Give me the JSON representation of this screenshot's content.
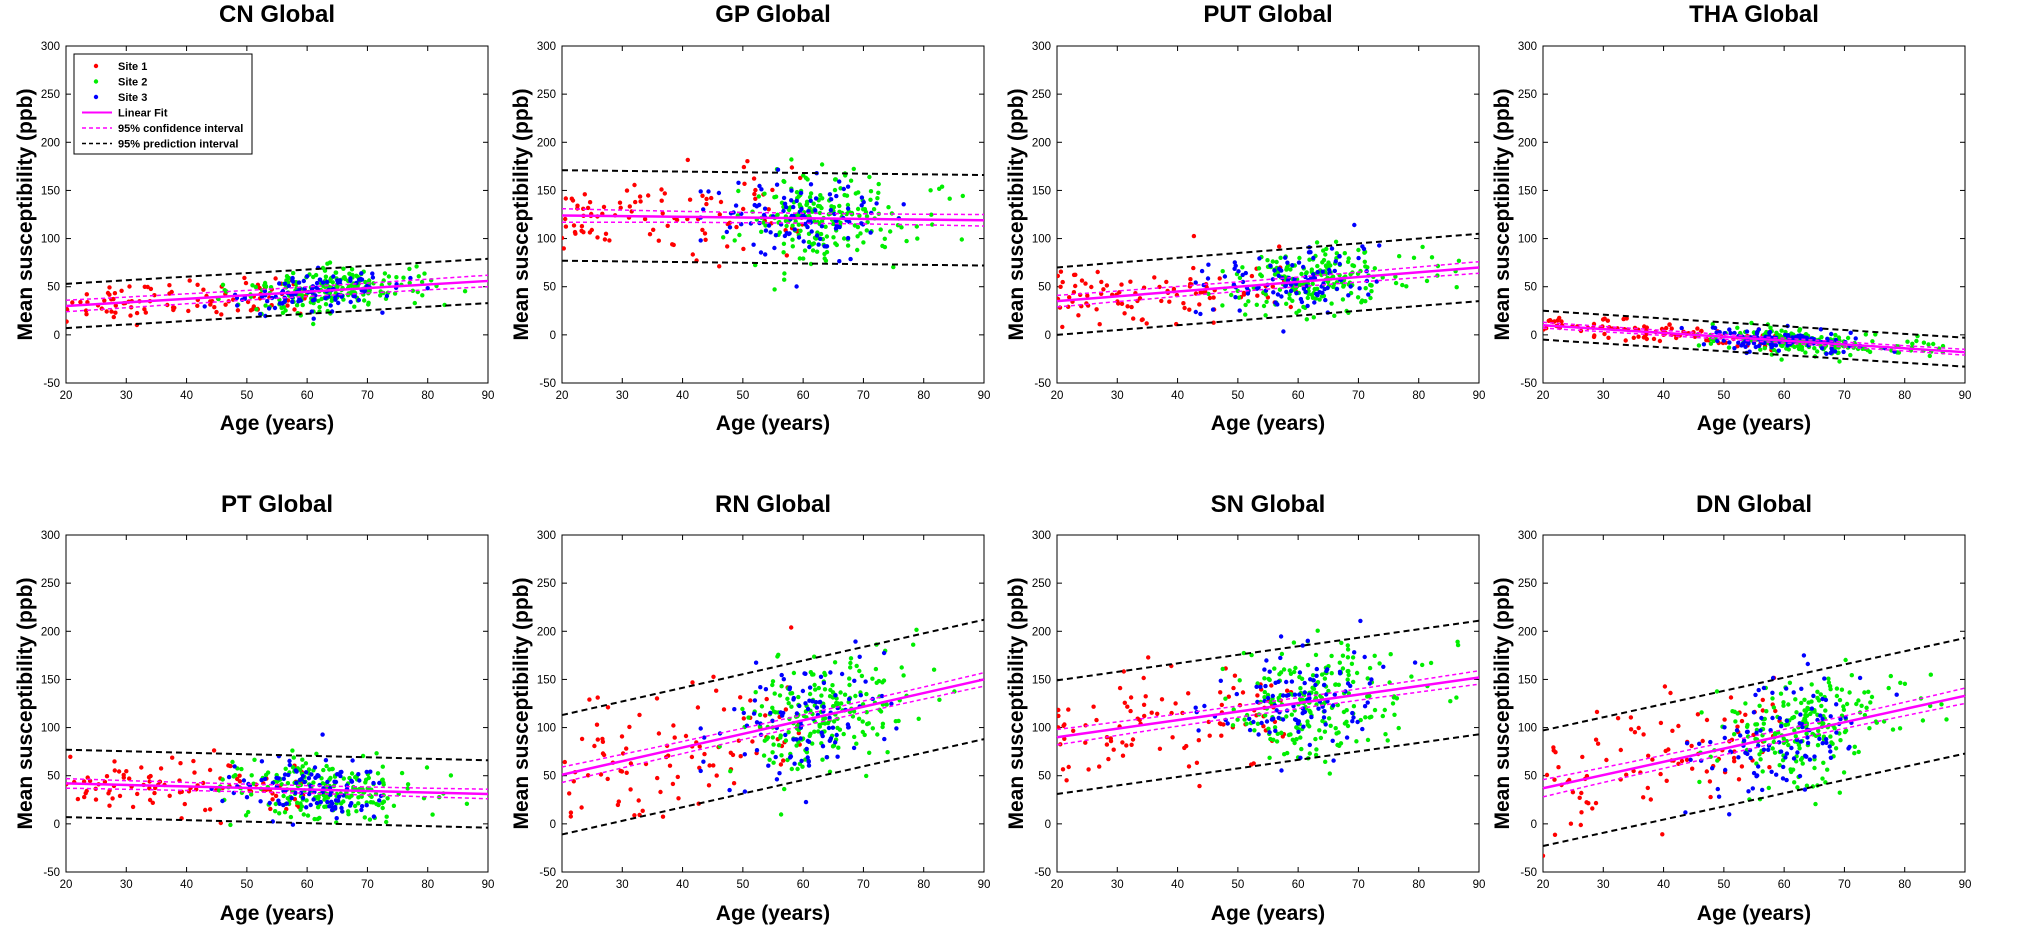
{
  "figure": {
    "xlabel": "Age (years)",
    "ylabel": "Mean susceptibility (ppb)",
    "legend": {
      "placement": "top-left of first panel",
      "entries": [
        {
          "label": "Site 1",
          "kind": "marker",
          "color": "#ff0000"
        },
        {
          "label": "Site 2",
          "kind": "marker",
          "color": "#00ee00"
        },
        {
          "label": "Site 3",
          "kind": "marker",
          "color": "#0000ff"
        },
        {
          "label": "Linear Fit",
          "kind": "line-solid",
          "color": "#ff00ff"
        },
        {
          "label": "95% confidence interval",
          "kind": "line-dashed",
          "color": "#ff00ff"
        },
        {
          "label": "95% prediction interval",
          "kind": "line-dashed",
          "color": "#000000"
        }
      ]
    }
  },
  "chart_data": [
    {
      "type": "scatter",
      "title": "CN Global",
      "xlabel": "Age (years)",
      "ylabel": "Mean susceptibility (ppb)",
      "xlim": [
        20,
        90
      ],
      "ylim": [
        -50,
        300
      ],
      "xticks": [
        "20",
        "30",
        "40",
        "50",
        "60",
        "70",
        "80",
        "90"
      ],
      "yticks": [
        "-50",
        "0",
        "50",
        "100",
        "150",
        "200",
        "250",
        "300"
      ],
      "fit": {
        "y_at_20": 30,
        "y_at_90": 56
      },
      "ci_halfwidth": [
        6,
        4,
        6
      ],
      "pi_halfwidth": 21,
      "scatter_sd": 10,
      "series": [
        {
          "name": "Site 1",
          "color": "#ff0000"
        },
        {
          "name": "Site 2",
          "color": "#00ee00"
        },
        {
          "name": "Site 3",
          "color": "#0000ff"
        }
      ]
    },
    {
      "type": "scatter",
      "title": "GP Global",
      "xlabel": "Age (years)",
      "ylabel": "Mean susceptibility (ppb)",
      "xlim": [
        20,
        90
      ],
      "ylim": [
        -50,
        300
      ],
      "xticks": [
        "20",
        "30",
        "40",
        "50",
        "60",
        "70",
        "80",
        "90"
      ],
      "yticks": [
        "-50",
        "0",
        "50",
        "100",
        "150",
        "200",
        "250",
        "300"
      ],
      "fit": {
        "y_at_20": 124,
        "y_at_90": 119
      },
      "ci_halfwidth": [
        7,
        4,
        6
      ],
      "pi_halfwidth": 45,
      "scatter_sd": 22,
      "series": [
        {
          "name": "Site 1",
          "color": "#ff0000"
        },
        {
          "name": "Site 2",
          "color": "#00ee00"
        },
        {
          "name": "Site 3",
          "color": "#0000ff"
        }
      ]
    },
    {
      "type": "scatter",
      "title": "PUT Global",
      "xlabel": "Age (years)",
      "ylabel": "Mean susceptibility (ppb)",
      "xlim": [
        20,
        90
      ],
      "ylim": [
        -50,
        300
      ],
      "xticks": [
        "20",
        "30",
        "40",
        "50",
        "60",
        "70",
        "80",
        "90"
      ],
      "yticks": [
        "-50",
        "0",
        "50",
        "100",
        "150",
        "200",
        "250",
        "300"
      ],
      "fit": {
        "y_at_20": 35,
        "y_at_90": 70
      },
      "ci_halfwidth": [
        6,
        4,
        6
      ],
      "pi_halfwidth": 33,
      "scatter_sd": 16,
      "series": [
        {
          "name": "Site 1",
          "color": "#ff0000"
        },
        {
          "name": "Site 2",
          "color": "#00ee00"
        },
        {
          "name": "Site 3",
          "color": "#0000ff"
        }
      ]
    },
    {
      "type": "scatter",
      "title": "THA Global",
      "xlabel": "Age (years)",
      "ylabel": "Mean susceptibility (ppb)",
      "xlim": [
        20,
        90
      ],
      "ylim": [
        -50,
        300
      ],
      "xticks": [
        "20",
        "30",
        "40",
        "50",
        "60",
        "70",
        "80",
        "90"
      ],
      "yticks": [
        "-50",
        "0",
        "50",
        "100",
        "150",
        "200",
        "250",
        "300"
      ],
      "fit": {
        "y_at_20": 10,
        "y_at_90": -18
      },
      "ci_halfwidth": [
        3,
        2,
        3
      ],
      "pi_halfwidth": 13,
      "scatter_sd": 6,
      "series": [
        {
          "name": "Site 1",
          "color": "#ff0000"
        },
        {
          "name": "Site 2",
          "color": "#00ee00"
        },
        {
          "name": "Site 3",
          "color": "#0000ff"
        }
      ]
    },
    {
      "type": "scatter",
      "title": "PT Global",
      "xlabel": "Age (years)",
      "ylabel": "Mean susceptibility (ppb)",
      "xlim": [
        20,
        90
      ],
      "ylim": [
        -50,
        300
      ],
      "xticks": [
        "20",
        "30",
        "40",
        "50",
        "60",
        "70",
        "80",
        "90"
      ],
      "yticks": [
        "-50",
        "0",
        "50",
        "100",
        "150",
        "200",
        "250",
        "300"
      ],
      "fit": {
        "y_at_20": 42,
        "y_at_90": 31
      },
      "ci_halfwidth": [
        5,
        3,
        5
      ],
      "pi_halfwidth": 33,
      "scatter_sd": 16,
      "series": [
        {
          "name": "Site 1",
          "color": "#ff0000"
        },
        {
          "name": "Site 2",
          "color": "#00ee00"
        },
        {
          "name": "Site 3",
          "color": "#0000ff"
        }
      ]
    },
    {
      "type": "scatter",
      "title": "RN Global",
      "xlabel": "Age (years)",
      "ylabel": "Mean susceptibility (ppb)",
      "xlim": [
        20,
        90
      ],
      "ylim": [
        -50,
        300
      ],
      "xticks": [
        "20",
        "30",
        "40",
        "50",
        "60",
        "70",
        "80",
        "90"
      ],
      "yticks": [
        "-50",
        "0",
        "50",
        "100",
        "150",
        "200",
        "250",
        "300"
      ],
      "fit": {
        "y_at_20": 51,
        "y_at_90": 150
      },
      "ci_halfwidth": [
        8,
        4,
        7
      ],
      "pi_halfwidth": 60,
      "scatter_sd": 30,
      "series": [
        {
          "name": "Site 1",
          "color": "#ff0000"
        },
        {
          "name": "Site 2",
          "color": "#00ee00"
        },
        {
          "name": "Site 3",
          "color": "#0000ff"
        }
      ]
    },
    {
      "type": "scatter",
      "title": "SN Global",
      "xlabel": "Age (years)",
      "ylabel": "Mean susceptibility (ppb)",
      "xlim": [
        20,
        90
      ],
      "ylim": [
        -50,
        300
      ],
      "xticks": [
        "20",
        "30",
        "40",
        "50",
        "60",
        "70",
        "80",
        "90"
      ],
      "yticks": [
        "-50",
        "0",
        "50",
        "100",
        "150",
        "200",
        "250",
        "300"
      ],
      "fit": {
        "y_at_20": 90,
        "y_at_90": 152
      },
      "ci_halfwidth": [
        8,
        4,
        7
      ],
      "pi_halfwidth": 57,
      "scatter_sd": 28,
      "series": [
        {
          "name": "Site 1",
          "color": "#ff0000"
        },
        {
          "name": "Site 2",
          "color": "#00ee00"
        },
        {
          "name": "Site 3",
          "color": "#0000ff"
        }
      ]
    },
    {
      "type": "scatter",
      "title": "DN Global",
      "xlabel": "Age (years)",
      "ylabel": "Mean susceptibility (ppb)",
      "xlim": [
        20,
        90
      ],
      "ylim": [
        -50,
        300
      ],
      "xticks": [
        "20",
        "30",
        "40",
        "50",
        "60",
        "70",
        "80",
        "90"
      ],
      "yticks": [
        "-50",
        "0",
        "50",
        "100",
        "150",
        "200",
        "250",
        "300"
      ],
      "fit": {
        "y_at_20": 37,
        "y_at_90": 133
      },
      "ci_halfwidth": [
        9,
        4,
        8
      ],
      "pi_halfwidth": 58,
      "scatter_sd": 28,
      "series": [
        {
          "name": "Site 1",
          "color": "#ff0000"
        },
        {
          "name": "Site 2",
          "color": "#00ee00"
        },
        {
          "name": "Site 3",
          "color": "#0000ff"
        }
      ]
    }
  ]
}
